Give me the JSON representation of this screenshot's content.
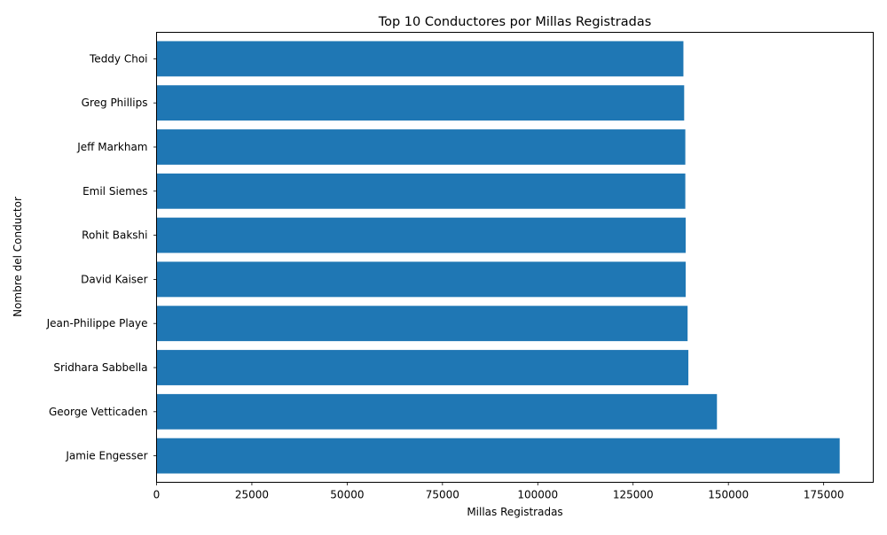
{
  "chart_data": {
    "type": "bar",
    "orientation": "horizontal",
    "title": "Top 10 Conductores por Millas Registradas",
    "xlabel": "Millas Registradas",
    "ylabel": "Nombre del Conductor",
    "xlim": [
      0,
      188000
    ],
    "xticks": [
      0,
      25000,
      50000,
      75000,
      100000,
      125000,
      150000,
      175000
    ],
    "grid": false,
    "bar_color": "#1f77b4",
    "categories": [
      "Jamie Engesser",
      "George Vetticaden",
      "Sridhara Sabbella",
      "Jean-Philippe Playe",
      "David Kaiser",
      "Rohit Bakshi",
      "Emil Siemes",
      "Jeff Markham",
      "Greg Phillips",
      "Teddy Choi"
    ],
    "values": [
      179200,
      147000,
      139500,
      139300,
      138800,
      138800,
      138700,
      138700,
      138400,
      138200
    ]
  }
}
